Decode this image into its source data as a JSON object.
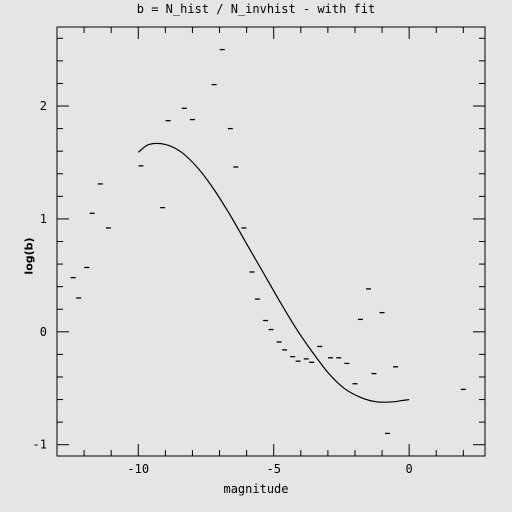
{
  "chart_data": {
    "type": "scatter",
    "title": "b = N_hist / N_invhist - with fit",
    "xlabel": "magnitude",
    "ylabel": "log(b)",
    "xlim": [
      -13.0,
      2.8
    ],
    "ylim": [
      -1.1,
      2.7
    ],
    "x_ticks": [
      -10,
      -5,
      0
    ],
    "y_ticks": [
      -1,
      0,
      1,
      2
    ],
    "grid": false,
    "series": [
      {
        "style": "dash-marker",
        "x": [
          -12.4,
          -12.2,
          -11.9,
          -11.7,
          -11.4,
          -11.1,
          -9.9,
          -9.1,
          -8.9,
          -8.3,
          -8.0,
          -7.2,
          -6.9,
          -6.6,
          -6.4,
          -6.1,
          -5.8,
          -5.6,
          -5.3,
          -5.1,
          -4.8,
          -4.6,
          -4.3,
          -4.1,
          -3.8,
          -3.6,
          -3.3,
          -2.9,
          -2.6,
          -2.3,
          -2.0,
          -1.8,
          -1.5,
          -1.3,
          -1.0,
          -0.8,
          -0.5,
          2.0
        ],
        "y": [
          0.48,
          0.3,
          0.57,
          1.05,
          1.31,
          0.92,
          1.47,
          1.1,
          1.87,
          1.98,
          1.88,
          2.19,
          2.5,
          1.8,
          1.46,
          0.92,
          0.53,
          0.29,
          0.1,
          0.02,
          -0.09,
          -0.16,
          -0.22,
          -0.26,
          -0.24,
          -0.27,
          -0.13,
          -0.23,
          -0.23,
          -0.28,
          -0.46,
          0.11,
          0.38,
          -0.37,
          0.17,
          -0.9,
          -0.31,
          -0.51
        ]
      },
      {
        "style": "line",
        "x": [
          -10.0,
          -9.6,
          -9.0,
          -8.4,
          -7.8,
          -7.2,
          -6.6,
          -6.0,
          -5.4,
          -4.8,
          -4.2,
          -3.6,
          -3.0,
          -2.4,
          -1.8,
          -1.2,
          -0.6,
          -0.3,
          0.0
        ],
        "y": [
          1.59,
          1.66,
          1.66,
          1.59,
          1.45,
          1.26,
          1.03,
          0.78,
          0.53,
          0.28,
          0.04,
          -0.17,
          -0.36,
          -0.5,
          -0.58,
          -0.62,
          -0.62,
          -0.61,
          -0.6
        ]
      }
    ]
  }
}
